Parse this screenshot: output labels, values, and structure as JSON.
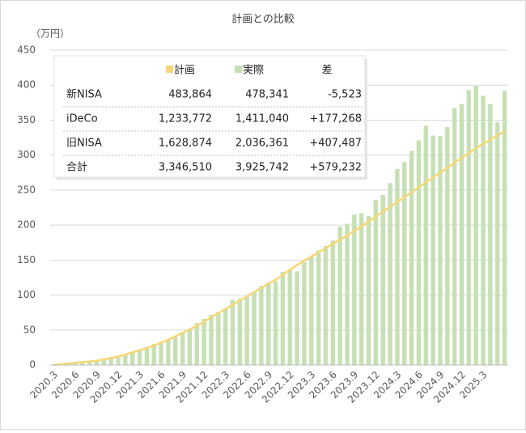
{
  "chart_data": {
    "type": "bar_line",
    "title": "計画との比較",
    "y_unit": "（万円）",
    "categories": [
      "2020.3",
      null,
      null,
      "2020.6",
      null,
      null,
      "2020.9",
      null,
      null,
      "2020.12",
      null,
      null,
      "2021.3",
      null,
      null,
      "2021.6",
      null,
      null,
      "2021.9",
      null,
      null,
      "2021.12",
      null,
      null,
      "2022.3",
      null,
      null,
      "2022.6",
      null,
      null,
      "2022.9",
      null,
      null,
      "2022.12",
      null,
      null,
      "2023.3",
      null,
      null,
      "2023.6",
      null,
      null,
      "2023.9",
      null,
      null,
      "2023.12",
      null,
      null,
      "2024.3",
      null,
      null,
      "2024.6",
      null,
      null,
      "2024.9",
      null,
      null,
      "2024.12",
      null,
      null,
      "2025.3",
      null,
      null,
      null
    ],
    "series": [
      {
        "name": "計画",
        "kind": "line",
        "color": "#f7d774",
        "values": [
          0,
          1,
          2,
          3,
          4,
          5,
          6,
          8,
          10,
          12,
          15,
          18,
          21,
          24,
          28,
          32,
          36,
          41,
          46,
          51,
          56,
          62,
          68,
          74,
          80,
          86,
          92,
          98,
          104,
          110,
          116,
          122,
          129,
          136,
          143,
          149,
          155,
          161,
          167,
          173,
          179,
          185,
          192,
          198,
          205,
          212,
          219,
          226,
          233,
          240,
          247,
          254,
          261,
          268,
          275,
          282,
          289,
          296,
          303,
          310,
          316,
          322,
          328,
          334
        ]
      },
      {
        "name": "実際",
        "kind": "bar",
        "color": "#c6e0b4",
        "values": [
          1,
          2,
          3,
          4,
          5,
          6,
          7,
          8,
          10,
          12,
          15,
          18,
          22,
          26,
          30,
          33,
          36,
          40,
          47,
          52,
          60,
          66,
          72,
          76,
          80,
          93,
          95,
          98,
          105,
          113,
          118,
          120,
          133,
          137,
          134,
          147,
          155,
          164,
          170,
          178,
          198,
          202,
          215,
          217,
          213,
          236,
          243,
          260,
          280,
          290,
          306,
          321,
          342,
          328,
          327,
          340,
          367,
          373,
          393,
          399,
          385,
          373,
          347,
          392
        ]
      }
    ],
    "ylim": [
      0,
      450
    ],
    "yticks": [
      0,
      50,
      100,
      150,
      200,
      250,
      300,
      350,
      400,
      450
    ],
    "grid": true,
    "table": {
      "diff_header": "差",
      "rows": [
        [
          "新NISA",
          "483,864",
          "478,341",
          "-5,523"
        ],
        [
          "iDeCo",
          "1,233,772",
          "1,411,040",
          "+177,268"
        ],
        [
          "旧NISA",
          "1,628,874",
          "2,036,361",
          "+407,487"
        ],
        [
          "合計",
          "3,346,510",
          "3,925,742",
          "+579,232"
        ]
      ]
    }
  }
}
